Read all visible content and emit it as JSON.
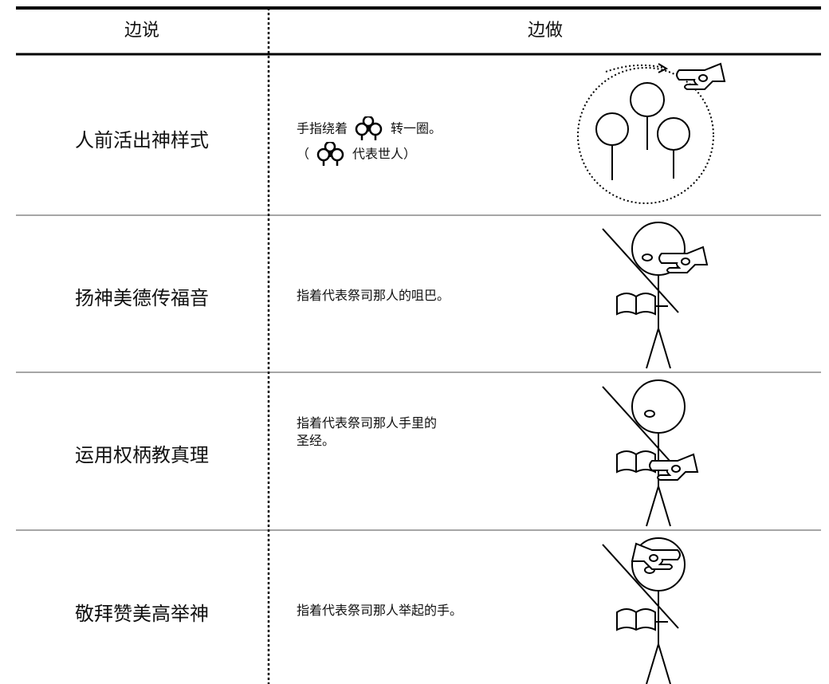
{
  "table": {
    "header": [
      "边说",
      "边做"
    ],
    "rows": [
      {
        "say": "人前活出神样式",
        "do": [
          "手指绕着",
          "转一圈。",
          "（",
          "代表世人）"
        ]
      },
      {
        "say": "扬神美德传福音",
        "do": [
          "指着代表祭司那人的咀巴。"
        ]
      },
      {
        "say": "运用权柄教真理",
        "do": [
          "指着代表祭司那人手里的圣经。"
        ]
      },
      {
        "say": "敬拜赞美高举神",
        "do": [
          "指着代表祭司那人举起的手。"
        ]
      }
    ]
  }
}
